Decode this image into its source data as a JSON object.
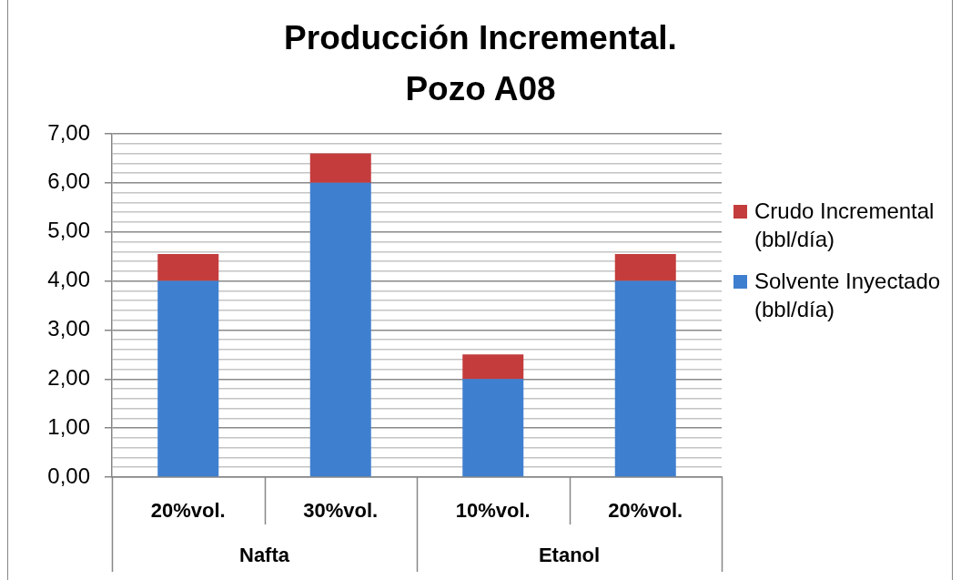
{
  "chart_data": {
    "type": "bar",
    "title": "Producción Incremental. Pozo A08",
    "categories": [
      "20%vol.",
      "30%vol.",
      "10%vol.",
      "20%vol."
    ],
    "series": [
      {
        "name": "Solvente Inyectado (bbl/día)",
        "color": "#3f7fcf",
        "values": [
          4,
          6,
          2,
          4
        ]
      },
      {
        "name": "Crudo Incremental (bbl/día)",
        "color": "#c43c3c",
        "values": [
          0.55,
          0.6,
          0.5,
          0.55
        ]
      }
    ],
    "stacked": true,
    "ylim": [
      0,
      7
    ],
    "yticks": [
      {
        "value": 0,
        "label": "0,00"
      },
      {
        "value": 0.2,
        "label": null
      },
      {
        "value": 0.4,
        "label": null
      },
      {
        "value": 0.6,
        "label": null
      },
      {
        "value": 0.8,
        "label": null
      },
      {
        "value": 1,
        "label": "1,00"
      },
      {
        "value": 1.2,
        "label": null
      },
      {
        "value": 1.4,
        "label": null
      },
      {
        "value": 1.6,
        "label": null
      },
      {
        "value": 1.8,
        "label": null
      },
      {
        "value": 2,
        "label": "2,00"
      },
      {
        "value": 2.2,
        "label": null
      },
      {
        "value": 2.4,
        "label": null
      },
      {
        "value": 2.6,
        "label": null
      },
      {
        "value": 2.8,
        "label": null
      },
      {
        "value": 3,
        "label": "3,00"
      },
      {
        "value": 3.2,
        "label": null
      },
      {
        "value": 3.4,
        "label": null
      },
      {
        "value": 3.6,
        "label": null
      },
      {
        "value": 3.8,
        "label": null
      },
      {
        "value": 4,
        "label": "4,00"
      },
      {
        "value": 4.2,
        "label": null
      },
      {
        "value": 4.4,
        "label": null
      },
      {
        "value": 4.6,
        "label": null
      },
      {
        "value": 4.8,
        "label": null
      },
      {
        "value": 5,
        "label": "5,00"
      },
      {
        "value": 5.2,
        "label": null
      },
      {
        "value": 5.4,
        "label": null
      },
      {
        "value": 5.6,
        "label": null
      },
      {
        "value": 5.8,
        "label": null
      },
      {
        "value": 6,
        "label": "6,00"
      },
      {
        "value": 6.2,
        "label": null
      },
      {
        "value": 6.4,
        "label": null
      },
      {
        "value": 6.6,
        "label": null
      },
      {
        "value": 6.8,
        "label": null
      },
      {
        "value": 7,
        "label": "7,00"
      }
    ],
    "grid": "y",
    "legend": "right",
    "annotations": [
      "Nafta",
      "Etanol"
    ]
  }
}
